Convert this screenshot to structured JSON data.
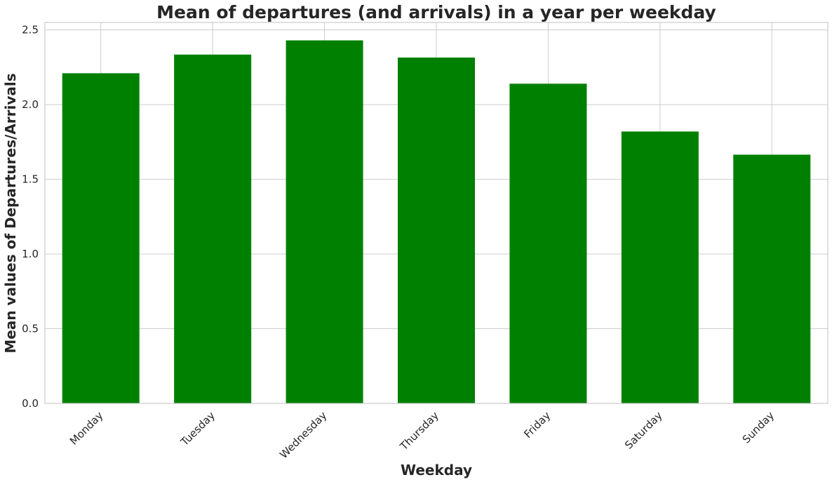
{
  "chart_data": {
    "type": "bar",
    "title": "Mean of departures (and arrivals) in a year per weekday",
    "xlabel": "Weekday",
    "ylabel": "Mean values of Departures/Arrivals",
    "categories": [
      "Monday",
      "Tuesday",
      "Wednesday",
      "Thursday",
      "Friday",
      "Saturday",
      "Sunday"
    ],
    "values": [
      2.21,
      2.335,
      2.43,
      2.315,
      2.14,
      1.82,
      1.665
    ],
    "ylim": [
      0,
      2.55
    ],
    "yticks": [
      "0.0",
      "0.5",
      "1.0",
      "1.5",
      "2.0",
      "2.5"
    ],
    "bar_color": "#008000",
    "grid": true
  }
}
